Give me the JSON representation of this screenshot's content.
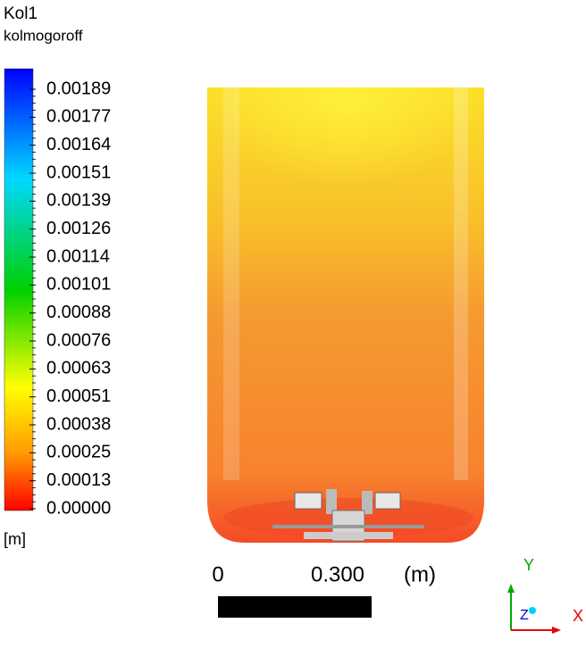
{
  "legend": {
    "title": "Kol1",
    "variable": "kolmogoroff",
    "ticks": [
      "0.00189",
      "0.00177",
      "0.00164",
      "0.00151",
      "0.00139",
      "0.00126",
      "0.00114",
      "0.00101",
      "0.00088",
      "0.00076",
      "0.00063",
      "0.00051",
      "0.00038",
      "0.00025",
      "0.00013",
      "0.00000"
    ],
    "unit": "[m]"
  },
  "scale_bar": {
    "start": "0",
    "end": "0.300",
    "unit": "(m)"
  },
  "axes_triad": {
    "y": "Y",
    "x": "X",
    "z": "Z"
  }
}
